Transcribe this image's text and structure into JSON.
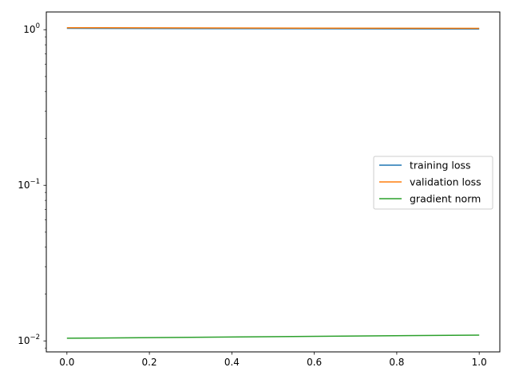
{
  "chart_data": {
    "type": "line",
    "title": "",
    "xlabel": "",
    "ylabel": "",
    "yscale": "log",
    "xlim": [
      -0.05,
      1.05
    ],
    "ylim": [
      0.0085,
      1.3
    ],
    "x_ticks": [
      {
        "value": 0.0,
        "label": "0.0"
      },
      {
        "value": 0.2,
        "label": "0.2"
      },
      {
        "value": 0.4,
        "label": "0.4"
      },
      {
        "value": 0.6,
        "label": "0.6"
      },
      {
        "value": 0.8,
        "label": "0.8"
      },
      {
        "value": 1.0,
        "label": "1.0"
      }
    ],
    "y_ticks": [
      {
        "value": 0.01,
        "base": "10",
        "exp": "−2"
      },
      {
        "value": 0.1,
        "base": "10",
        "exp": "−1"
      },
      {
        "value": 1,
        "base": "10",
        "exp": "0"
      }
    ],
    "grid": false,
    "legend": "center-right",
    "series": [
      {
        "name": "training loss",
        "color": "#1f77b4",
        "x": [
          0.0,
          1.0
        ],
        "values": [
          1.02,
          1.01
        ]
      },
      {
        "name": "validation loss",
        "color": "#ff7f0e",
        "x": [
          0.0,
          1.0
        ],
        "values": [
          1.03,
          1.02
        ]
      },
      {
        "name": "gradient norm",
        "color": "#2ca02c",
        "x": [
          0.0,
          1.0
        ],
        "values": [
          0.0104,
          0.0109
        ]
      }
    ]
  }
}
